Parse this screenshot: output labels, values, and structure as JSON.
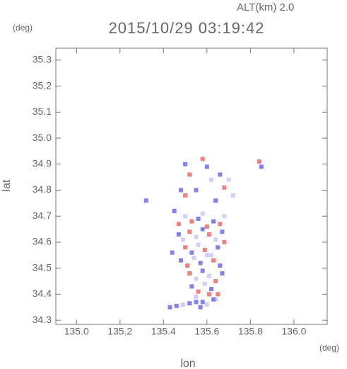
{
  "chart_data": {
    "type": "scatter",
    "title": "2015/10/29 03:19:42",
    "subtitle": "ALT(km) 2.0",
    "x_label": "lon",
    "y_label": "lat",
    "x_unit": "(deg)",
    "y_unit": "(deg)",
    "xlim": [
      134.905,
      136.153
    ],
    "ylim": [
      34.284,
      35.346
    ],
    "xticks": [
      {
        "value": 135,
        "label": "135.0"
      },
      135.2,
      135.4,
      135.6,
      135.8,
      {
        "value": 136,
        "label": "136.0"
      }
    ],
    "yticks": [
      34.3,
      34.4,
      34.5,
      34.6,
      34.7,
      34.8,
      34.9,
      {
        "value": 35,
        "label": "35.0"
      },
      35.1,
      35.2,
      35.3
    ],
    "x": [
      135.5,
      135.52,
      135.48,
      135.58,
      135.6,
      135.62,
      135.66,
      135.68,
      135.7,
      135.55,
      135.5,
      135.64,
      135.72,
      135.84,
      135.85,
      135.32,
      135.45,
      135.47,
      135.5,
      135.53,
      135.56,
      135.58,
      135.6,
      135.63,
      135.66,
      135.68,
      135.47,
      135.49,
      135.52,
      135.55,
      135.58,
      135.61,
      135.64,
      135.67,
      135.5,
      135.53,
      135.56,
      135.59,
      135.62,
      135.65,
      135.68,
      135.48,
      135.51,
      135.54,
      135.57,
      135.6,
      135.63,
      135.66,
      135.52,
      135.55,
      135.58,
      135.61,
      135.64,
      135.67,
      135.53,
      135.56,
      135.59,
      135.62,
      135.65,
      135.55,
      135.58,
      135.61,
      135.64,
      135.57,
      135.6,
      135.63,
      135.43,
      135.46,
      135.49,
      135.52,
      135.55,
      135.44
    ],
    "y": [
      34.9,
      34.86,
      34.8,
      34.92,
      34.89,
      34.84,
      34.86,
      34.81,
      34.84,
      34.8,
      34.78,
      34.76,
      34.78,
      34.91,
      34.89,
      34.76,
      34.72,
      34.67,
      34.7,
      34.68,
      34.69,
      34.71,
      34.66,
      34.68,
      34.67,
      34.7,
      34.63,
      34.61,
      34.64,
      34.62,
      34.65,
      34.63,
      34.61,
      34.64,
      34.58,
      34.56,
      34.59,
      34.57,
      34.55,
      34.58,
      34.6,
      34.53,
      34.51,
      34.54,
      34.52,
      34.55,
      34.53,
      34.51,
      34.48,
      34.46,
      34.49,
      34.47,
      34.45,
      34.48,
      34.43,
      34.41,
      34.44,
      34.42,
      34.4,
      34.39,
      34.37,
      34.4,
      34.38,
      34.35,
      34.36,
      34.38,
      34.35,
      34.355,
      34.36,
      34.365,
      34.37,
      34.56
    ],
    "colors": [
      "#8080f0",
      "#f08080",
      "#8080f0",
      "#f08080",
      "#8080f0",
      "#d0d0f8",
      "#8080f0",
      "#f08080",
      "#d0d0f8",
      "#8080f0",
      "#f08080",
      "#8080f0",
      "#d0d0f8",
      "#f08080",
      "#8080f0",
      "#8080f0",
      "#8080f0",
      "#f08080",
      "#d0d0f8",
      "#f08080",
      "#8080f0",
      "#d0d0f8",
      "#f08080",
      "#8080f0",
      "#f08080",
      "#d0d0f8",
      "#8080f0",
      "#d0d0f8",
      "#f08080",
      "#d0d0f8",
      "#8080f0",
      "#f08080",
      "#d0d0f8",
      "#8080f0",
      "#f08080",
      "#8080f0",
      "#d0d0f8",
      "#f08080",
      "#d0d0f8",
      "#8080f0",
      "#f08080",
      "#8080f0",
      "#f08080",
      "#d0d0f8",
      "#8080f0",
      "#d0d0f8",
      "#f08080",
      "#8080f0",
      "#f08080",
      "#d0d0f8",
      "#8080f0",
      "#d0d0f8",
      "#f08080",
      "#8080f0",
      "#8080f0",
      "#f08080",
      "#d0d0f8",
      "#8080f0",
      "#f08080",
      "#d0d0f8",
      "#8080f0",
      "#f08080",
      "#d0d0f8",
      "#8080f0",
      "#d0d0f8",
      "#8080f0",
      "#8080f0",
      "#8080f0",
      "#d0d0f8",
      "#8080f0",
      "#8080f0",
      "#8080f0"
    ]
  }
}
